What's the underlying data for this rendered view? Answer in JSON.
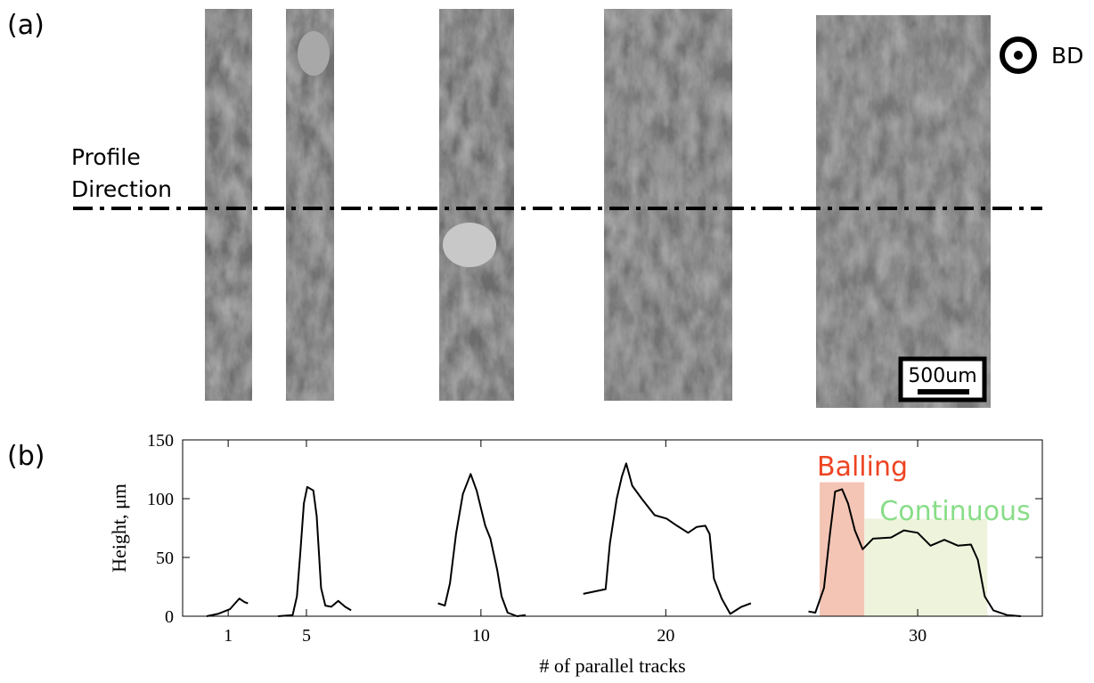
{
  "panel_a": {
    "label": "(a)",
    "profile_label": [
      "Profile",
      "Direction"
    ],
    "bd_label": "BD",
    "scale_bar": "500um"
  },
  "chart_data": {
    "type": "line",
    "label": "(b)",
    "x_label": "# of parallel tracks",
    "y_label": "Height, μm",
    "xlim": [
      0,
      100
    ],
    "ylim": [
      0,
      150
    ],
    "xticks": [
      {
        "value": 5.3,
        "label": "1"
      },
      {
        "value": 14.4,
        "label": "5"
      },
      {
        "value": 34.7,
        "label": "10"
      },
      {
        "value": 56.2,
        "label": "20"
      },
      {
        "value": 85.5,
        "label": "30"
      }
    ],
    "yticks": [
      0,
      50,
      100,
      150
    ],
    "color": "#000000",
    "x": [
      2.8,
      4.1,
      5.5,
      6.1,
      6.6,
      7.2,
      7.6,
      null,
      11.1,
      12.8,
      13.3,
      13.7,
      14.1,
      14.5,
      15.2,
      15.6,
      16.1,
      16.6,
      17.3,
      18.1,
      18.9,
      19.6,
      null,
      29.7,
      30.5,
      31.1,
      31.8,
      32.6,
      33.5,
      34.2,
      35.2,
      35.8,
      36.6,
      37.1,
      37.8,
      38.9,
      39.9,
      null,
      46.6,
      49.2,
      49.7,
      50.5,
      51.1,
      51.6,
      52.3,
      53.4,
      54.9,
      56.3,
      57.5,
      58.8,
      59.8,
      60.8,
      61.3,
      61.8,
      62.7,
      63.7,
      65.0,
      66.1,
      null,
      72.8,
      73.6,
      74.6,
      75.3,
      75.9,
      76.7,
      77.4,
      78.2,
      79.1,
      80.3,
      82.4,
      83.9,
      85.5,
      87.0,
      88.6,
      90.2,
      91.7,
      92.5,
      93.3,
      94.3,
      95.9,
      97.5
    ],
    "values": [
      0,
      2,
      6,
      11,
      15,
      12,
      11,
      null,
      0,
      1,
      17,
      55,
      96,
      110,
      107,
      85,
      24,
      9,
      8,
      13,
      8,
      5,
      null,
      11,
      9,
      28,
      70,
      104,
      121,
      107,
      77,
      66,
      39,
      17,
      3,
      0,
      1,
      null,
      19,
      23,
      62,
      100,
      119,
      130,
      111,
      100,
      86,
      83,
      77,
      71,
      76,
      77,
      70,
      32,
      15,
      2,
      8,
      11,
      null,
      4,
      3,
      24,
      70,
      106,
      108,
      96,
      73,
      57,
      66,
      67,
      73,
      71,
      60,
      65,
      60,
      61,
      48,
      17,
      5,
      1,
      0
    ],
    "regions": [
      {
        "label": "Balling",
        "x": [
          74.1,
          79.3
        ],
        "top": 114,
        "color": "#f4c5b5",
        "label_color": "#ee4422"
      },
      {
        "label": "Continuous",
        "x": [
          79.3,
          93.6
        ],
        "top": 83,
        "color": "#eef3dc",
        "label_color": "#88dd88"
      }
    ]
  }
}
